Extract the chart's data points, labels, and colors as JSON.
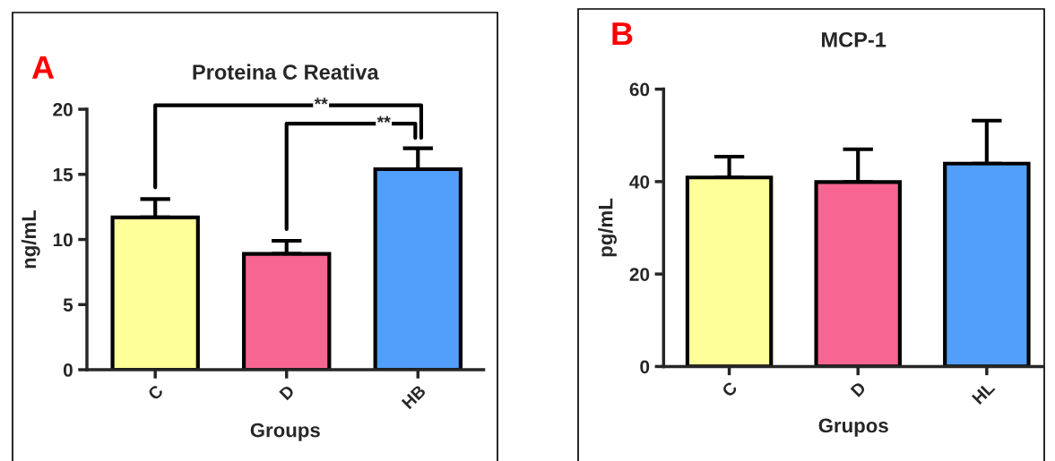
{
  "chart_data": [
    {
      "type": "bar",
      "title": "Proteina C Reativa",
      "xlabel": "Groups",
      "ylabel": "ng/mL",
      "categories": [
        "C",
        "D",
        "HB"
      ],
      "values": [
        11.7,
        8.9,
        15.4
      ],
      "colors": [
        "#ffff99",
        "#f76592",
        "#529ffb"
      ],
      "errors": [
        [
          11.7,
          13.1
        ],
        [
          8.9,
          9.9
        ],
        [
          15.4,
          17.0
        ]
      ],
      "ylim": [
        0,
        20
      ],
      "yticks": [
        0,
        5,
        10,
        15,
        20
      ],
      "grid": false,
      "legend": false,
      "annotations": [
        "A",
        "**",
        "**"
      ]
    },
    {
      "type": "bar",
      "title": "MCP-1",
      "xlabel": "Grupos",
      "ylabel": "pg/mL",
      "categories": [
        "C",
        "D",
        "HL"
      ],
      "values": [
        40.9,
        39.9,
        43.9
      ],
      "colors": [
        "#ffff99",
        "#f76592",
        "#529ffb"
      ],
      "errors": [
        [
          40.9,
          45.4
        ],
        [
          39.9,
          47.0
        ],
        [
          43.9,
          53.2
        ]
      ],
      "ylim": [
        0,
        60
      ],
      "yticks": [
        0,
        20,
        40,
        60
      ],
      "grid": false,
      "legend": false,
      "annotations": [
        "B"
      ]
    }
  ]
}
